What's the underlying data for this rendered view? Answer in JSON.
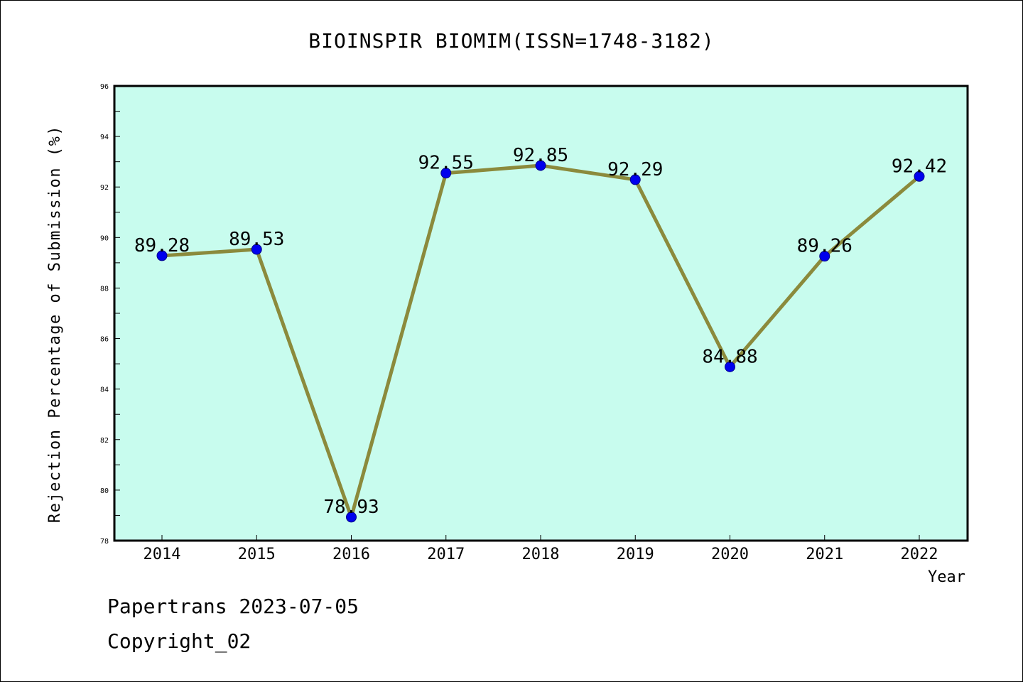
{
  "chart_data": {
    "type": "line",
    "title": "BIOINSPIR BIOMIM(ISSN=1748-3182)",
    "xlabel": "Year",
    "ylabel": "Rejection Percentage of Submission (%)",
    "categories": [
      "2014",
      "2015",
      "2016",
      "2017",
      "2018",
      "2019",
      "2020",
      "2021",
      "2022"
    ],
    "series": [
      {
        "values": [
          89.28,
          89.53,
          78.93,
          92.55,
          92.85,
          92.29,
          84.88,
          89.26,
          92.42
        ],
        "labels": [
          "89.28",
          "89.53",
          "78.93",
          "92.55",
          "92.85",
          "92.29",
          "84.88",
          "89.26",
          "92.42"
        ]
      }
    ],
    "ylim": [
      78,
      96
    ],
    "yticks": [
      "78",
      "80",
      "82",
      "84",
      "86",
      "88",
      "90",
      "92",
      "94",
      "96"
    ],
    "grid": false,
    "colors": {
      "plot_background": "#c8fcee",
      "line": "#8b8a3c",
      "marker": "#0000ee"
    }
  },
  "footer": {
    "line1": "Papertrans 2023-07-05",
    "line2": "Copyright_02"
  }
}
